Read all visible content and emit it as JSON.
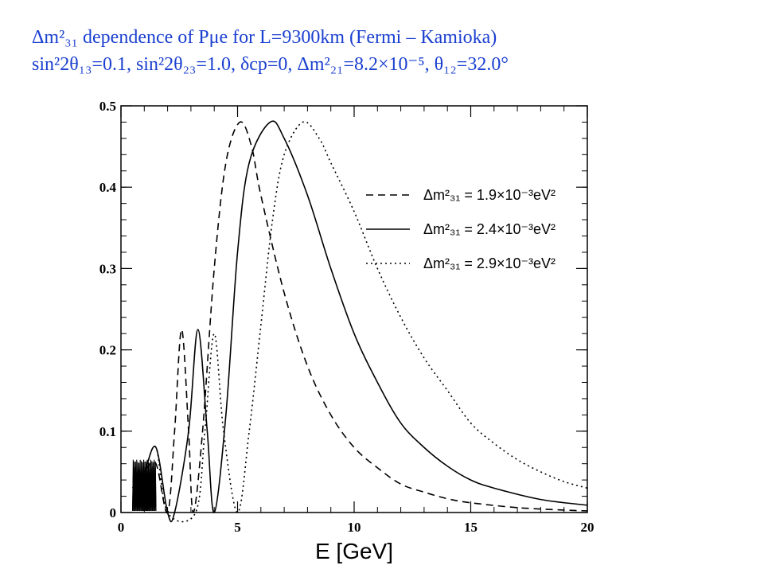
{
  "title_line1": "Δm²₃₁ dependence of Pμe for L=9300km (Fermi – Kamioka)",
  "title_line2": "sin²2θ₁₃=0.1, sin²2θ₂₃=1.0, δcp=0, Δm²₂₁=8.2×10⁻⁵, θ₁₂=32.0°",
  "chart_data": {
    "type": "line",
    "xlabel": "E [GeV]",
    "ylabel": "",
    "xlim": [
      0,
      20
    ],
    "ylim": [
      0,
      0.5
    ],
    "x_ticks": [
      0,
      5,
      10,
      15,
      20
    ],
    "y_ticks": [
      0,
      0.1,
      0.2,
      0.3,
      0.4,
      0.5
    ],
    "y_tick_labels": [
      "0",
      "0.1",
      "0.2",
      "0.3",
      "0.4",
      "0.5"
    ],
    "grid": false,
    "legend_position": "top-right",
    "series": [
      {
        "name": "Δm²₃₁ = 1.9×10⁻³eV²",
        "dash": "dashed",
        "peak_E": 5.1,
        "peak_P": 0.48,
        "points": [
          [
            0.5,
            0.03
          ],
          [
            1.0,
            0.05
          ],
          [
            1.5,
            0.06
          ],
          [
            2.0,
            0.0
          ],
          [
            2.3,
            0.1
          ],
          [
            2.6,
            0.225
          ],
          [
            2.9,
            0.1
          ],
          [
            3.1,
            0.0
          ],
          [
            3.5,
            0.1
          ],
          [
            4.0,
            0.3
          ],
          [
            4.5,
            0.43
          ],
          [
            5.1,
            0.48
          ],
          [
            5.6,
            0.45
          ],
          [
            6.0,
            0.39
          ],
          [
            7.0,
            0.27
          ],
          [
            8.0,
            0.18
          ],
          [
            9.0,
            0.12
          ],
          [
            10.0,
            0.08
          ],
          [
            11.0,
            0.055
          ],
          [
            12.0,
            0.035
          ],
          [
            13.0,
            0.025
          ],
          [
            14.0,
            0.017
          ],
          [
            15.0,
            0.012
          ],
          [
            17.0,
            0.006
          ],
          [
            19.0,
            0.003
          ],
          [
            20.0,
            0.002
          ]
        ]
      },
      {
        "name": "Δm²₃₁ = 2.4×10⁻³eV²",
        "dash": "solid",
        "peak_E": 6.4,
        "peak_P": 0.48,
        "points": [
          [
            0.5,
            0.03
          ],
          [
            1.0,
            0.05
          ],
          [
            1.5,
            0.08
          ],
          [
            2.0,
            0.0
          ],
          [
            2.3,
            0.0
          ],
          [
            2.9,
            0.1
          ],
          [
            3.3,
            0.225
          ],
          [
            3.7,
            0.1
          ],
          [
            4.0,
            0.0
          ],
          [
            4.5,
            0.12
          ],
          [
            5.0,
            0.32
          ],
          [
            5.5,
            0.43
          ],
          [
            6.4,
            0.48
          ],
          [
            7.0,
            0.46
          ],
          [
            8.0,
            0.39
          ],
          [
            9.0,
            0.3
          ],
          [
            10.0,
            0.22
          ],
          [
            11.0,
            0.16
          ],
          [
            12.0,
            0.11
          ],
          [
            13.0,
            0.08
          ],
          [
            14.0,
            0.057
          ],
          [
            15.0,
            0.04
          ],
          [
            16.0,
            0.03
          ],
          [
            18.0,
            0.016
          ],
          [
            20.0,
            0.009
          ]
        ]
      },
      {
        "name": "Δm²₃₁ = 2.9×10⁻³eV²",
        "dash": "dotted",
        "peak_E": 7.8,
        "peak_P": 0.48,
        "points": [
          [
            0.5,
            0.03
          ],
          [
            1.0,
            0.05
          ],
          [
            1.5,
            0.08
          ],
          [
            2.0,
            0.0
          ],
          [
            3.2,
            0.0
          ],
          [
            3.6,
            0.1
          ],
          [
            4.0,
            0.22
          ],
          [
            4.4,
            0.1
          ],
          [
            5.0,
            0.0
          ],
          [
            5.5,
            0.1
          ],
          [
            6.0,
            0.23
          ],
          [
            6.5,
            0.36
          ],
          [
            7.0,
            0.44
          ],
          [
            7.8,
            0.48
          ],
          [
            8.5,
            0.46
          ],
          [
            9.0,
            0.43
          ],
          [
            10.0,
            0.37
          ],
          [
            11.0,
            0.3
          ],
          [
            12.0,
            0.24
          ],
          [
            13.0,
            0.19
          ],
          [
            14.0,
            0.15
          ],
          [
            15.0,
            0.11
          ],
          [
            16.0,
            0.085
          ],
          [
            17.0,
            0.065
          ],
          [
            18.0,
            0.05
          ],
          [
            19.0,
            0.038
          ],
          [
            20.0,
            0.03
          ]
        ]
      }
    ]
  }
}
